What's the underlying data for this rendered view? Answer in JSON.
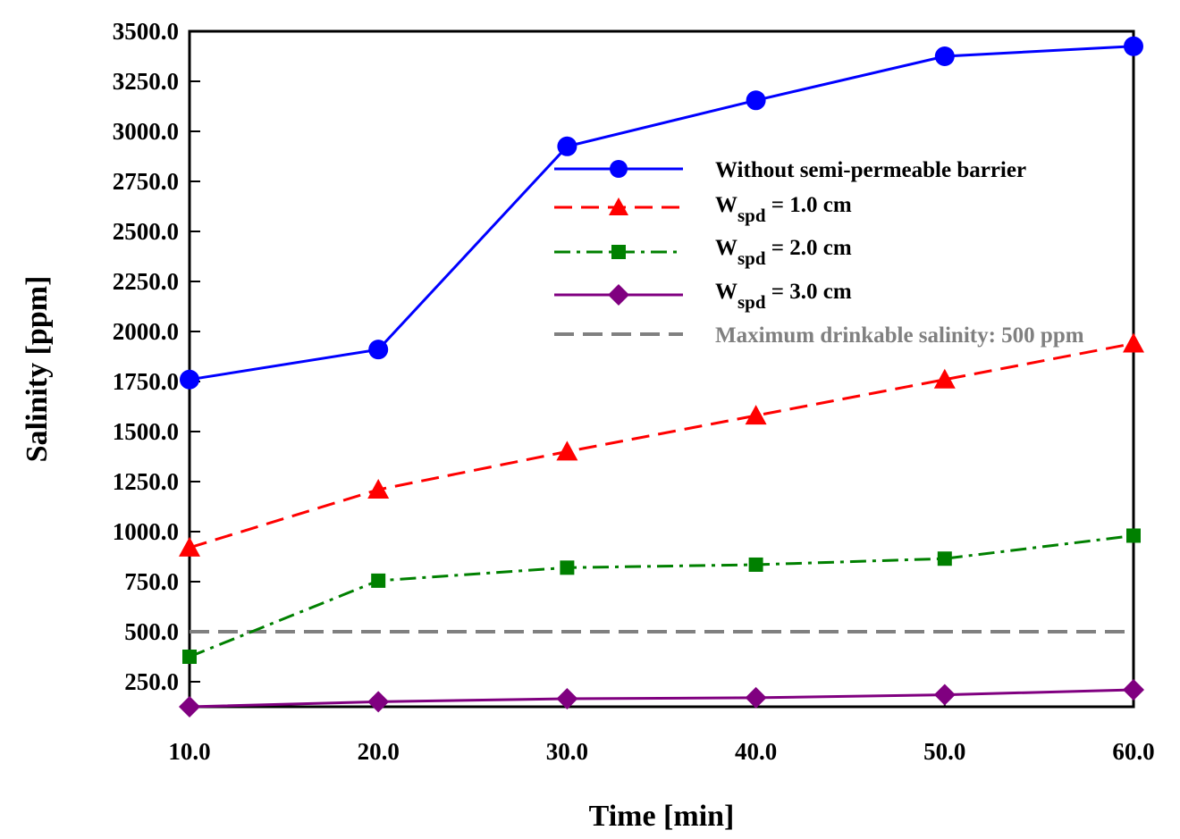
{
  "chart_data": {
    "type": "line",
    "title": "",
    "xlabel": "Time [min]",
    "ylabel": "Salinity [ppm]",
    "xlim": [
      10,
      60
    ],
    "ylim": [
      125,
      3500
    ],
    "x_ticks": [
      "10.0",
      "20.0",
      "30.0",
      "40.0",
      "50.0",
      "60.0"
    ],
    "y_ticks": [
      "250.0",
      "500.0",
      "750.0",
      "1000.0",
      "1250.0",
      "1500.0",
      "1750.0",
      "2000.0",
      "2250.0",
      "2500.0",
      "2750.0",
      "3000.0",
      "3250.0",
      "3500.0"
    ],
    "x": [
      10,
      20,
      30,
      40,
      50,
      60
    ],
    "grid": false,
    "legend_position": "upper-right",
    "series": [
      {
        "name": "Without semi-permeable barrier",
        "color": "#0000ff",
        "marker": "circle",
        "dash": "solid",
        "values": [
          1760,
          1910,
          2925,
          3155,
          3375,
          3425
        ]
      },
      {
        "name_main": "W",
        "name_sub": "spd",
        "name_rest": " = 1.0 cm",
        "color": "#ff0000",
        "marker": "triangle",
        "dash": "dashed",
        "values": [
          920,
          1210,
          1400,
          1580,
          1760,
          1940
        ]
      },
      {
        "name_main": "W",
        "name_sub": "spd",
        "name_rest": " = 2.0 cm",
        "color": "#008000",
        "marker": "square",
        "dash": "dashdot",
        "values": [
          375,
          755,
          820,
          835,
          865,
          980
        ]
      },
      {
        "name_main": "W",
        "name_sub": "spd",
        "name_rest": " = 3.0 cm",
        "color": "#800080",
        "marker": "diamond",
        "dash": "solid",
        "values": [
          125,
          150,
          165,
          170,
          185,
          210
        ]
      }
    ],
    "reference_line": {
      "name": "Maximum drinkable salinity: 500 ppm",
      "color": "#808080",
      "value": 500
    }
  }
}
